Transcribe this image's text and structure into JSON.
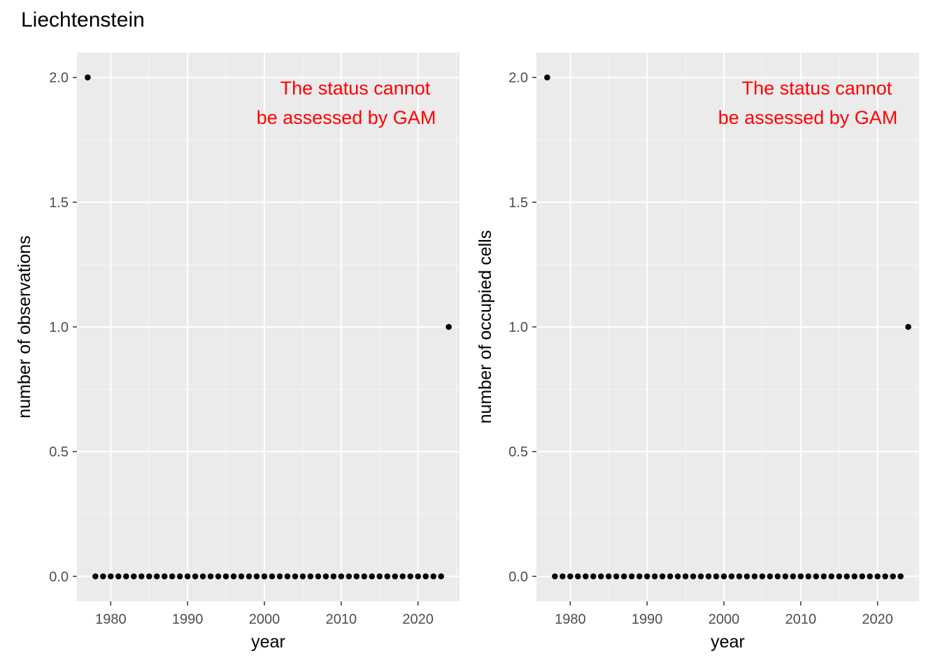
{
  "figure": {
    "title": "Liechtenstein"
  },
  "chart_data": [
    {
      "type": "scatter",
      "title": "",
      "xlabel": "year",
      "ylabel": "number of observations",
      "xlim": [
        1975.6,
        2025.4
      ],
      "ylim": [
        -0.1,
        2.1
      ],
      "x_ticks": [
        1980,
        1990,
        2000,
        2010,
        2020
      ],
      "y_ticks": [
        0.0,
        0.5,
        1.0,
        1.5,
        2.0
      ],
      "y_tick_labels": [
        "0.0",
        "0.5",
        "1.0",
        "1.5",
        "2.0"
      ],
      "grid": true,
      "point_color": "#000000",
      "annotation": {
        "lines": [
          "The status cannot",
          "be assessed by GAM"
        ],
        "color": "#ff0000"
      },
      "points": {
        "x": [
          1977,
          1978,
          1979,
          1980,
          1981,
          1982,
          1983,
          1984,
          1985,
          1986,
          1987,
          1988,
          1989,
          1990,
          1991,
          1992,
          1993,
          1994,
          1995,
          1996,
          1997,
          1998,
          1999,
          2000,
          2001,
          2002,
          2003,
          2004,
          2005,
          2006,
          2007,
          2008,
          2009,
          2010,
          2011,
          2012,
          2013,
          2014,
          2015,
          2016,
          2017,
          2018,
          2019,
          2020,
          2021,
          2022,
          2023,
          2024
        ],
        "y": [
          2,
          0,
          0,
          0,
          0,
          0,
          0,
          0,
          0,
          0,
          0,
          0,
          0,
          0,
          0,
          0,
          0,
          0,
          0,
          0,
          0,
          0,
          0,
          0,
          0,
          0,
          0,
          0,
          0,
          0,
          0,
          0,
          0,
          0,
          0,
          0,
          0,
          0,
          0,
          0,
          0,
          0,
          0,
          0,
          0,
          0,
          0,
          1
        ]
      }
    },
    {
      "type": "scatter",
      "title": "",
      "xlabel": "year",
      "ylabel": "number of occupied cells",
      "xlim": [
        1975.6,
        2025.4
      ],
      "ylim": [
        -0.1,
        2.1
      ],
      "x_ticks": [
        1980,
        1990,
        2000,
        2010,
        2020
      ],
      "y_ticks": [
        0.0,
        0.5,
        1.0,
        1.5,
        2.0
      ],
      "y_tick_labels": [
        "0.0",
        "0.5",
        "1.0",
        "1.5",
        "2.0"
      ],
      "grid": true,
      "point_color": "#000000",
      "annotation": {
        "lines": [
          "The status cannot",
          "be assessed by GAM"
        ],
        "color": "#ff0000"
      },
      "points": {
        "x": [
          1977,
          1978,
          1979,
          1980,
          1981,
          1982,
          1983,
          1984,
          1985,
          1986,
          1987,
          1988,
          1989,
          1990,
          1991,
          1992,
          1993,
          1994,
          1995,
          1996,
          1997,
          1998,
          1999,
          2000,
          2001,
          2002,
          2003,
          2004,
          2005,
          2006,
          2007,
          2008,
          2009,
          2010,
          2011,
          2012,
          2013,
          2014,
          2015,
          2016,
          2017,
          2018,
          2019,
          2020,
          2021,
          2022,
          2023,
          2024
        ],
        "y": [
          2,
          0,
          0,
          0,
          0,
          0,
          0,
          0,
          0,
          0,
          0,
          0,
          0,
          0,
          0,
          0,
          0,
          0,
          0,
          0,
          0,
          0,
          0,
          0,
          0,
          0,
          0,
          0,
          0,
          0,
          0,
          0,
          0,
          0,
          0,
          0,
          0,
          0,
          0,
          0,
          0,
          0,
          0,
          0,
          0,
          0,
          0,
          1
        ]
      }
    }
  ]
}
